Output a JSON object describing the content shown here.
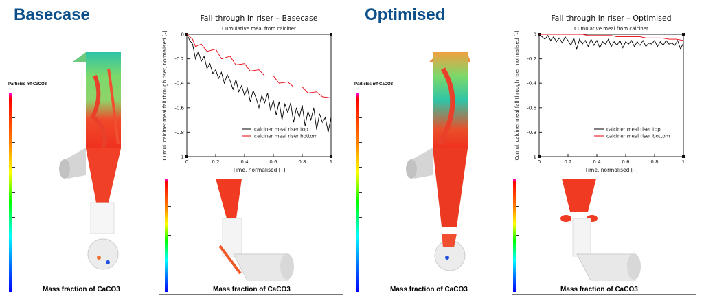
{
  "left": {
    "heading": "Basecase",
    "colorbar_label": "Particles mf-CaCO3",
    "caption": "Mass fraction of CaCO3",
    "sub_caption": "Mass fraction of CaCO3"
  },
  "right": {
    "heading": "Optimised",
    "colorbar_label": "Particles mf-CaCO3",
    "caption": "Mass fraction of CaCO3",
    "sub_caption": "Mass fraction of CaCO3"
  },
  "colors": {
    "heading": "#0b4f8a",
    "series_top": "#000000",
    "series_bottom": "#e8000b"
  },
  "chart_data": [
    {
      "type": "line",
      "title": "Fall through in riser – Basecase",
      "subtitle": "Cumulative meal from calciner",
      "xlabel": "Time, normalised [–]",
      "ylabel": "Cumul. calciner meal fall through riser, normalised [–]",
      "xlim": [
        0,
        1
      ],
      "ylim": [
        -1,
        0
      ],
      "xticks": [
        "0",
        "0.2",
        "0.4",
        "0.6",
        "0.8",
        "1"
      ],
      "yticks": [
        "0",
        "-0.2",
        "-0.4",
        "-0.6",
        "-0.8",
        "-1"
      ],
      "legend": "bottom-right",
      "grid": false,
      "series": [
        {
          "name": "calciner meal riser top",
          "color": "#000000",
          "x": [
            0,
            0.02,
            0.04,
            0.06,
            0.08,
            0.1,
            0.12,
            0.14,
            0.16,
            0.18,
            0.2,
            0.22,
            0.24,
            0.26,
            0.28,
            0.3,
            0.32,
            0.34,
            0.36,
            0.38,
            0.4,
            0.42,
            0.44,
            0.46,
            0.48,
            0.5,
            0.52,
            0.54,
            0.56,
            0.58,
            0.6,
            0.62,
            0.64,
            0.66,
            0.68,
            0.7,
            0.72,
            0.74,
            0.76,
            0.78,
            0.8,
            0.82,
            0.84,
            0.86,
            0.88,
            0.9,
            0.92,
            0.94,
            0.96,
            0.98,
            1
          ],
          "y": [
            0,
            -0.05,
            -0.08,
            -0.2,
            -0.14,
            -0.22,
            -0.18,
            -0.28,
            -0.24,
            -0.32,
            -0.29,
            -0.36,
            -0.31,
            -0.4,
            -0.33,
            -0.38,
            -0.45,
            -0.37,
            -0.47,
            -0.42,
            -0.5,
            -0.44,
            -0.55,
            -0.46,
            -0.52,
            -0.6,
            -0.5,
            -0.56,
            -0.48,
            -0.62,
            -0.54,
            -0.66,
            -0.55,
            -0.7,
            -0.57,
            -0.64,
            -0.56,
            -0.72,
            -0.6,
            -0.68,
            -0.58,
            -0.75,
            -0.63,
            -0.7,
            -0.6,
            -0.78,
            -0.65,
            -0.72,
            -0.68,
            -0.8,
            -0.68
          ]
        },
        {
          "name": "calciner meal riser bottom",
          "color": "#e8000b",
          "x": [
            0,
            0.04,
            0.06,
            0.1,
            0.14,
            0.2,
            0.24,
            0.3,
            0.34,
            0.4,
            0.44,
            0.5,
            0.54,
            0.6,
            0.64,
            0.7,
            0.74,
            0.8,
            0.84,
            0.9,
            0.94,
            1
          ],
          "y": [
            0,
            -0.04,
            -0.1,
            -0.08,
            -0.14,
            -0.12,
            -0.2,
            -0.18,
            -0.25,
            -0.24,
            -0.3,
            -0.29,
            -0.34,
            -0.34,
            -0.4,
            -0.39,
            -0.43,
            -0.43,
            -0.48,
            -0.47,
            -0.51,
            -0.52
          ]
        }
      ]
    },
    {
      "type": "line",
      "title": "Fall through in riser – Optimised",
      "subtitle": "Cumulative meal from calciner",
      "xlabel": "Time, normalised [–]",
      "ylabel": "Cumul. calciner meal fall through riser, normalised [–]",
      "xlim": [
        0,
        1
      ],
      "ylim": [
        -1,
        0
      ],
      "xticks": [
        "0",
        "0.2",
        "0.4",
        "0.6",
        "0.8",
        "1"
      ],
      "yticks": [
        "0",
        "-0.2",
        "-0.4",
        "-0.6",
        "-0.8",
        "-1"
      ],
      "legend": "bottom-right",
      "grid": false,
      "series": [
        {
          "name": "calciner meal riser top",
          "color": "#000000",
          "x": [
            0,
            0.02,
            0.04,
            0.06,
            0.08,
            0.1,
            0.12,
            0.14,
            0.16,
            0.18,
            0.2,
            0.22,
            0.24,
            0.26,
            0.28,
            0.3,
            0.32,
            0.34,
            0.36,
            0.38,
            0.4,
            0.42,
            0.44,
            0.46,
            0.48,
            0.5,
            0.52,
            0.54,
            0.56,
            0.58,
            0.6,
            0.62,
            0.64,
            0.66,
            0.68,
            0.7,
            0.72,
            0.74,
            0.76,
            0.78,
            0.8,
            0.82,
            0.84,
            0.86,
            0.88,
            0.9,
            0.92,
            0.94,
            0.96,
            0.98,
            1
          ],
          "y": [
            0,
            -0.02,
            -0.04,
            -0.01,
            -0.05,
            -0.02,
            -0.06,
            -0.03,
            -0.07,
            -0.02,
            -0.05,
            -0.09,
            -0.03,
            -0.12,
            -0.04,
            -0.08,
            -0.05,
            -0.1,
            -0.04,
            -0.09,
            -0.05,
            -0.11,
            -0.06,
            -0.08,
            -0.04,
            -0.1,
            -0.06,
            -0.09,
            -0.05,
            -0.11,
            -0.06,
            -0.08,
            -0.05,
            -0.1,
            -0.06,
            -0.09,
            -0.05,
            -0.1,
            -0.07,
            -0.08,
            -0.05,
            -0.1,
            -0.06,
            -0.09,
            -0.05,
            -0.08,
            -0.07,
            -0.09,
            -0.05,
            -0.12,
            -0.07
          ]
        },
        {
          "name": "calciner meal riser bottom",
          "color": "#e8000b",
          "x": [
            0,
            0.3,
            0.34,
            0.5,
            0.54,
            0.7,
            0.74,
            0.85,
            0.9,
            0.95,
            1
          ],
          "y": [
            0,
            0,
            -0.01,
            -0.01,
            -0.02,
            -0.02,
            -0.03,
            -0.03,
            -0.04,
            -0.04,
            -0.05
          ]
        }
      ]
    }
  ]
}
